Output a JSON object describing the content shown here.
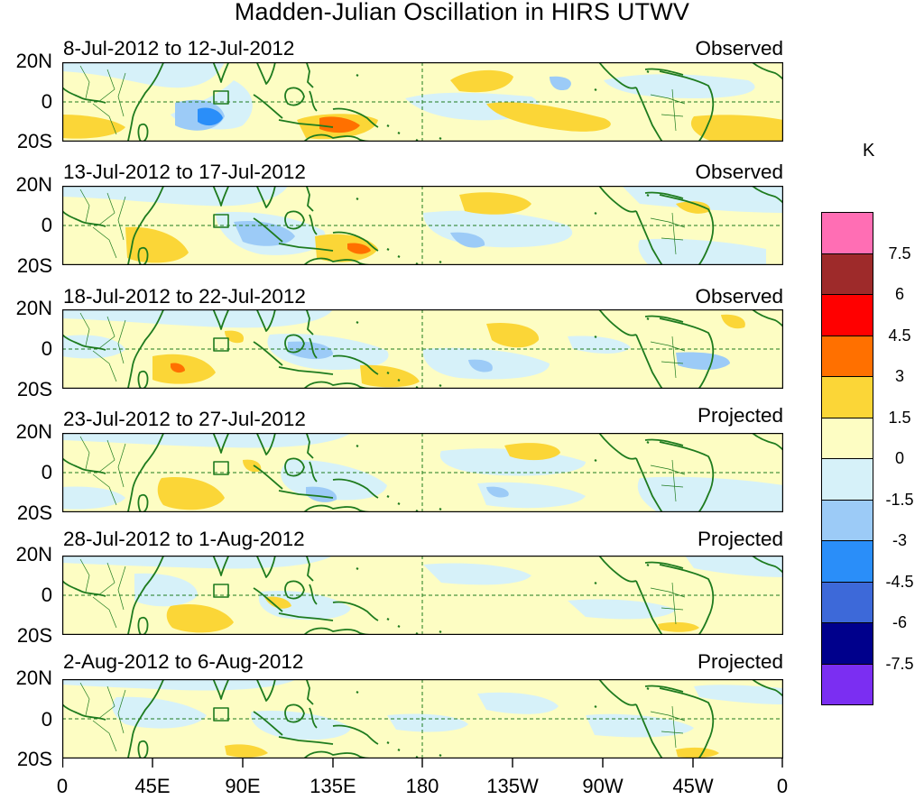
{
  "title": "Madden-Julian Oscillation in HIRS UTWV",
  "panels": [
    {
      "date": "8-Jul-2012 to 12-Jul-2012",
      "label": "Observed"
    },
    {
      "date": "13-Jul-2012 to 17-Jul-2012",
      "label": "Observed"
    },
    {
      "date": "18-Jul-2012 to 22-Jul-2012",
      "label": "Observed"
    },
    {
      "date": "23-Jul-2012 to 27-Jul-2012",
      "label": "Projected"
    },
    {
      "date": "28-Jul-2012 to 1-Aug-2012",
      "label": "Projected"
    },
    {
      "date": "2-Aug-2012 to 6-Aug-2012",
      "label": "Projected"
    }
  ],
  "y_ticks": [
    "20N",
    "0",
    "20S"
  ],
  "x_ticks": [
    "0",
    "45E",
    "90E",
    "135E",
    "180",
    "135W",
    "90W",
    "45W",
    "0"
  ],
  "colorbar": {
    "unit": "K",
    "labels": [
      "7.5",
      "6",
      "4.5",
      "3",
      "1.5",
      "0",
      "-1.5",
      "-3",
      "-4.5",
      "-6",
      "-7.5"
    ],
    "colors": [
      "#ff6eb4",
      "#9e2a2a",
      "#ff0000",
      "#ff7000",
      "#fbd637",
      "#fdfdc3",
      "#d6f1f9",
      "#9ccbf7",
      "#2a8ef9",
      "#3d69d9",
      "#00008c",
      "#7b2ef2"
    ]
  },
  "colors": {
    "coast": "#1e7b1e",
    "positive_light": "#fdfdc3",
    "positive": "#fbd637",
    "positive_strong": "#ff7000",
    "negative_light": "#d6f1f9",
    "negative": "#9ccbf7",
    "negative_strong": "#2a8ef9"
  }
}
